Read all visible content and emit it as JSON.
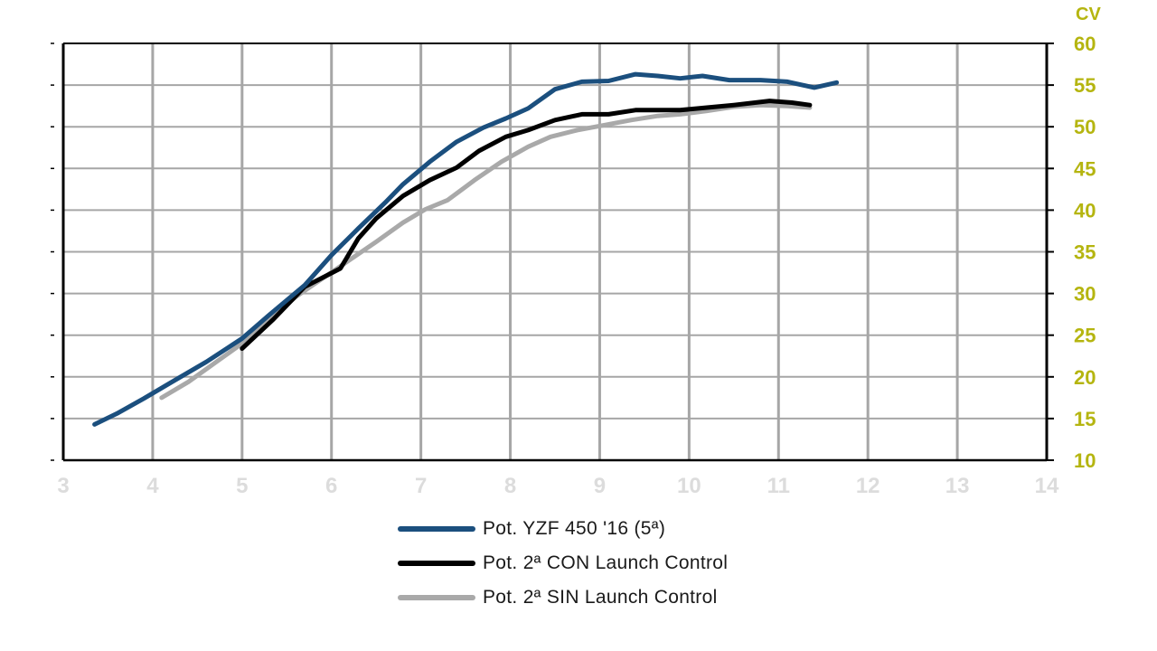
{
  "colors": {
    "axis_tick_text": "#b5b510",
    "grid": "#a6a6a6",
    "frame": "#000000",
    "ghost_tick": "#dcdcdc"
  },
  "chart_data": {
    "type": "line",
    "title": "",
    "xlabel": "",
    "ylabel": "CV",
    "xlim": [
      3,
      14
    ],
    "ylim": [
      10,
      60
    ],
    "xticks": [
      3,
      4,
      5,
      6,
      7,
      8,
      9,
      10,
      11,
      12,
      13,
      14
    ],
    "yticks": [
      10,
      15,
      20,
      25,
      30,
      35,
      40,
      45,
      50,
      55,
      60
    ],
    "y_axis_side": "right",
    "grid": true,
    "legend_position": "bottom",
    "series": [
      {
        "name": "Pot. YZF 450 '16 (5ª)",
        "color": "#1b4f7e",
        "x": [
          3.35,
          3.6,
          3.9,
          4.2,
          4.6,
          5.0,
          5.3,
          5.7,
          6.0,
          6.3,
          6.6,
          6.8,
          7.1,
          7.4,
          7.7,
          7.95,
          8.2,
          8.5,
          8.8,
          9.1,
          9.4,
          9.65,
          9.9,
          10.15,
          10.45,
          10.8,
          11.1,
          11.4,
          11.65
        ],
        "y": [
          14.3,
          15.6,
          17.4,
          19.3,
          21.8,
          24.6,
          27.4,
          31.0,
          34.6,
          37.8,
          40.9,
          43.1,
          45.8,
          48.2,
          49.9,
          51.0,
          52.2,
          54.5,
          55.4,
          55.5,
          56.3,
          56.1,
          55.8,
          56.1,
          55.6,
          55.6,
          55.4,
          54.7,
          55.3
        ]
      },
      {
        "name": "Pot. 2ª CON Launch Control",
        "color": "#000000",
        "x": [
          5.0,
          5.35,
          5.7,
          5.9,
          6.1,
          6.3,
          6.5,
          6.8,
          7.1,
          7.4,
          7.65,
          7.95,
          8.2,
          8.5,
          8.8,
          9.1,
          9.4,
          9.65,
          9.9,
          10.2,
          10.5,
          10.9,
          11.15,
          11.35
        ],
        "y": [
          23.4,
          26.9,
          30.8,
          31.9,
          33.0,
          36.6,
          39.0,
          41.7,
          43.6,
          45.1,
          47.1,
          48.8,
          49.6,
          50.8,
          51.5,
          51.5,
          52.0,
          52.0,
          52.0,
          52.3,
          52.6,
          53.1,
          52.9,
          52.6
        ]
      },
      {
        "name": "Pot. 2ª SIN Launch Control",
        "color": "#a9a9a9",
        "x": [
          4.1,
          4.4,
          4.7,
          5.0,
          5.3,
          5.6,
          5.9,
          6.2,
          6.5,
          6.8,
          7.05,
          7.3,
          7.6,
          7.9,
          8.2,
          8.45,
          8.75,
          9.05,
          9.35,
          9.65,
          9.9,
          10.2,
          10.5,
          10.8,
          11.1,
          11.35
        ],
        "y": [
          17.5,
          19.4,
          21.7,
          24.0,
          26.9,
          29.6,
          31.8,
          34.0,
          36.2,
          38.5,
          40.1,
          41.2,
          43.6,
          45.8,
          47.6,
          48.8,
          49.6,
          50.2,
          50.8,
          51.3,
          51.5,
          51.9,
          52.4,
          52.6,
          52.5,
          52.3
        ]
      }
    ]
  }
}
